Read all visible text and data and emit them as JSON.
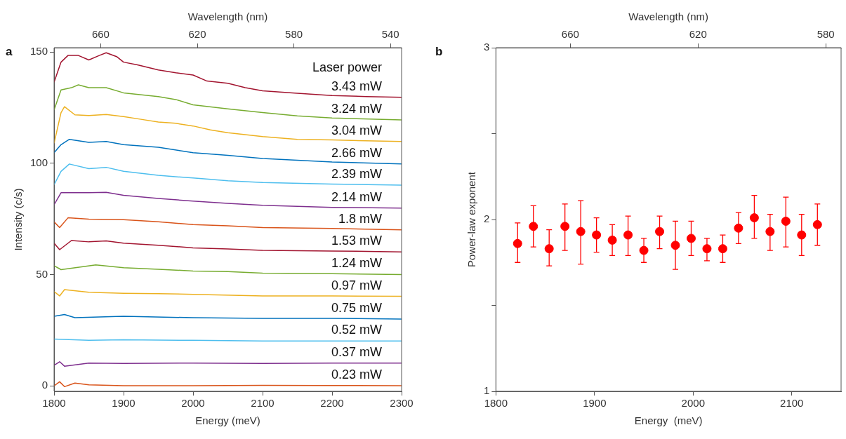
{
  "chart_data": [
    {
      "type": "line",
      "annotations": [
        "a"
      ],
      "xlabel": "Energy (meV)",
      "ylabel": "Intensity (c/s)",
      "x2label": "Wavelength (nm)",
      "legend_title": "Laser power",
      "xlim": [
        1800,
        2300
      ],
      "xticks": [
        1800,
        1900,
        2000,
        2100,
        2200,
        2300
      ],
      "x2lim": [
        679.3,
        535.4
      ],
      "x2ticks": [
        660,
        620,
        580,
        540
      ],
      "ylim": [
        -2.5,
        152
      ],
      "yticks": [
        0,
        50,
        100,
        150
      ],
      "marker": "none",
      "legend": false,
      "series": [
        {
          "name": "3.43 mW",
          "color": "#a2142f",
          "x": [
            1800,
            1810,
            1820,
            1835,
            1850,
            1865,
            1875,
            1890,
            1900,
            1920,
            1950,
            1975,
            2000,
            2020,
            2050,
            2075,
            2100,
            2150,
            2200,
            2250,
            2300
          ],
          "values": [
            136.5,
            145.5,
            148.5,
            148.5,
            146.5,
            148.5,
            149.7,
            148,
            145.5,
            144.3,
            142,
            140.7,
            139.7,
            137,
            136,
            134,
            132.6,
            131.5,
            130.5,
            130,
            129.7
          ]
        },
        {
          "name": "3.24 mW",
          "color": "#77ac30",
          "x": [
            1800,
            1810,
            1825,
            1835,
            1850,
            1875,
            1900,
            1950,
            1975,
            2000,
            2050,
            2100,
            2150,
            2200,
            2300
          ],
          "values": [
            124,
            133,
            134,
            135.3,
            134,
            134,
            131.7,
            130,
            128.7,
            126.3,
            124.5,
            122.8,
            121.3,
            120.4,
            119.5
          ]
        },
        {
          "name": "3.04 mW",
          "color": "#edb120",
          "x": [
            1800,
            1810,
            1815,
            1830,
            1850,
            1875,
            1900,
            1925,
            1950,
            1975,
            2000,
            2025,
            2050,
            2100,
            2150,
            2200,
            2300
          ],
          "values": [
            109,
            122.8,
            125.5,
            121.8,
            121.5,
            122,
            121,
            119.8,
            118.6,
            118,
            116.8,
            115,
            113.8,
            112,
            110.8,
            110.5,
            109.8
          ]
        },
        {
          "name": "2.66 mW",
          "color": "#0072bd",
          "x": [
            1800,
            1810,
            1822,
            1850,
            1875,
            1900,
            1950,
            2000,
            2050,
            2100,
            2200,
            2300
          ],
          "values": [
            104.8,
            108.4,
            110.8,
            109.4,
            109.8,
            108.4,
            107.2,
            104.8,
            103.6,
            102.2,
            100.6,
            99.7
          ]
        },
        {
          "name": "2.39 mW",
          "color": "#4dbeee",
          "x": [
            1800,
            1810,
            1822,
            1850,
            1875,
            1900,
            1950,
            2000,
            2050,
            2100,
            2200,
            2300
          ],
          "values": [
            90.4,
            96.4,
            99.7,
            97.6,
            98.2,
            96.4,
            94.6,
            93.4,
            92.2,
            91.4,
            90.7,
            90.2
          ]
        },
        {
          "name": "2.14 mW",
          "color": "#7e2f8e",
          "x": [
            1800,
            1810,
            1850,
            1875,
            1900,
            1950,
            2000,
            2050,
            2100,
            2200,
            2300
          ],
          "values": [
            81.4,
            86.8,
            86.8,
            87,
            85.6,
            84.2,
            83,
            82,
            81.1,
            80.2,
            79.9
          ]
        },
        {
          "name": "1.8 mW",
          "color": "#d95319",
          "x": [
            1800,
            1808,
            1820,
            1850,
            1900,
            1950,
            2000,
            2050,
            2100,
            2200,
            2300
          ],
          "values": [
            73.7,
            71.1,
            75.5,
            74.9,
            74.7,
            73.7,
            72.5,
            71.9,
            71.1,
            70.7,
            70.1
          ]
        },
        {
          "name": "1.53 mW",
          "color": "#a2142f",
          "x": [
            1800,
            1808,
            1825,
            1850,
            1875,
            1900,
            1950,
            2000,
            2050,
            2100,
            2200,
            2300
          ],
          "values": [
            64.1,
            61.2,
            65.3,
            64.7,
            65.1,
            64.1,
            63.2,
            62,
            61.5,
            60.9,
            60.6,
            60.2
          ]
        },
        {
          "name": "1.24 mW",
          "color": "#77ac30",
          "x": [
            1800,
            1810,
            1825,
            1860,
            1900,
            1950,
            2000,
            2050,
            2100,
            2200,
            2300
          ],
          "values": [
            54,
            52.2,
            52.8,
            54.3,
            53.1,
            52.4,
            51.6,
            51.3,
            50.6,
            50.4,
            50
          ]
        },
        {
          "name": "0.97 mW",
          "color": "#edb120",
          "x": [
            1800,
            1808,
            1815,
            1850,
            1900,
            1950,
            2000,
            2100,
            2200,
            2300
          ],
          "values": [
            42.3,
            40.4,
            43.2,
            42,
            41.6,
            41.4,
            41.1,
            40.4,
            40.4,
            40.2
          ]
        },
        {
          "name": "0.75 mW",
          "color": "#0072bd",
          "x": [
            1800,
            1815,
            1830,
            1900,
            2000,
            2100,
            2200,
            2300
          ],
          "values": [
            31.2,
            32,
            30.6,
            31.2,
            30.6,
            30.3,
            30.3,
            30
          ]
        },
        {
          "name": "0.52 mW",
          "color": "#4dbeee",
          "x": [
            1800,
            1850,
            1900,
            2000,
            2100,
            2200,
            2300
          ],
          "values": [
            21,
            20.4,
            20.7,
            20.4,
            20.1,
            20.1,
            20.1
          ]
        },
        {
          "name": "0.37 mW",
          "color": "#7e2f8e",
          "x": [
            1800,
            1808,
            1815,
            1850,
            1900,
            2000,
            2100,
            2200,
            2300
          ],
          "values": [
            9.2,
            10.8,
            8.8,
            10.2,
            10,
            10.2,
            10,
            10.2,
            10.2
          ]
        },
        {
          "name": "0.23 mW",
          "color": "#d95319",
          "x": [
            1800,
            1808,
            1815,
            1830,
            1850,
            1900,
            2000,
            2100,
            2200,
            2300
          ],
          "values": [
            0,
            1.8,
            -0.4,
            1.2,
            0.4,
            0,
            0,
            0.2,
            0.1,
            0
          ]
        }
      ]
    },
    {
      "type": "scatter",
      "annotations": [
        "b"
      ],
      "xlabel": "Energy  (meV)",
      "ylabel": "Power-law exponent",
      "x2label": "Wavelength (nm)",
      "xlim": [
        1800,
        2150
      ],
      "xticks": [
        1800,
        1900,
        2000,
        2100
      ],
      "x2lim": [
        683.3,
        575.2
      ],
      "x2ticks": [
        660,
        620,
        580
      ],
      "ylim": [
        1,
        3
      ],
      "yticks": [
        1,
        {
          "value": 1.5,
          "label": null
        },
        2,
        {
          "value": 2.5,
          "label": null
        },
        3
      ],
      "marker": "circle",
      "legend": false,
      "series": [
        {
          "color": "#ff0000",
          "x": [
            1822,
            1838,
            1854,
            1870,
            1886,
            1902,
            1918,
            1934,
            1950,
            1966,
            1982,
            1998,
            2014,
            2030,
            2046,
            2062,
            2078,
            2094,
            2110,
            2126
          ],
          "values": [
            1.86,
            1.96,
            1.83,
            1.96,
            1.93,
            1.91,
            1.88,
            1.91,
            1.82,
            1.93,
            1.85,
            1.89,
            1.83,
            1.83,
            1.95,
            2.01,
            1.93,
            1.99,
            1.91,
            1.97
          ],
          "errors": [
            [
              1.75,
              1.98
            ],
            [
              1.84,
              2.08
            ],
            [
              1.73,
              1.94
            ],
            [
              1.82,
              2.09
            ],
            [
              1.74,
              2.11
            ],
            [
              1.81,
              2.01
            ],
            [
              1.79,
              1.97
            ],
            [
              1.79,
              2.02
            ],
            [
              1.75,
              1.89
            ],
            [
              1.83,
              2.02
            ],
            [
              1.71,
              1.99
            ],
            [
              1.79,
              1.99
            ],
            [
              1.76,
              1.89
            ],
            [
              1.75,
              1.91
            ],
            [
              1.86,
              2.04
            ],
            [
              1.89,
              2.14
            ],
            [
              1.82,
              2.03
            ],
            [
              1.84,
              2.13
            ],
            [
              1.79,
              2.03
            ],
            [
              1.85,
              2.09
            ]
          ]
        }
      ]
    }
  ]
}
